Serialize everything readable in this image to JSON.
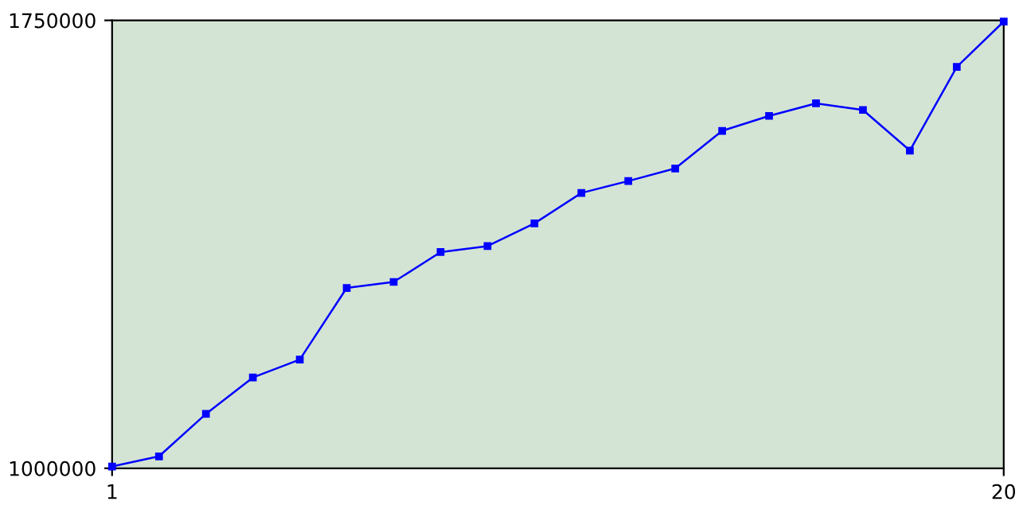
{
  "chart_data": {
    "type": "line",
    "x": [
      1,
      2,
      3,
      4,
      5,
      6,
      7,
      8,
      9,
      10,
      11,
      12,
      13,
      14,
      15,
      16,
      17,
      18,
      19,
      20
    ],
    "series": [
      {
        "color": "#0000ff",
        "values": [
          1003000,
          1020000,
          1091000,
          1152000,
          1182000,
          1302000,
          1312000,
          1362000,
          1372000,
          1410000,
          1461000,
          1481000,
          1502000,
          1565000,
          1590000,
          1611000,
          1600000,
          1532000,
          1672000,
          1748000
        ]
      }
    ],
    "xlim": [
      1,
      20
    ],
    "ylim": [
      1000000,
      1750000
    ],
    "xticks": [
      1,
      20
    ],
    "yticks": [
      1000000,
      1750000
    ],
    "grid": false,
    "marker": "square",
    "line_style": "solid"
  }
}
